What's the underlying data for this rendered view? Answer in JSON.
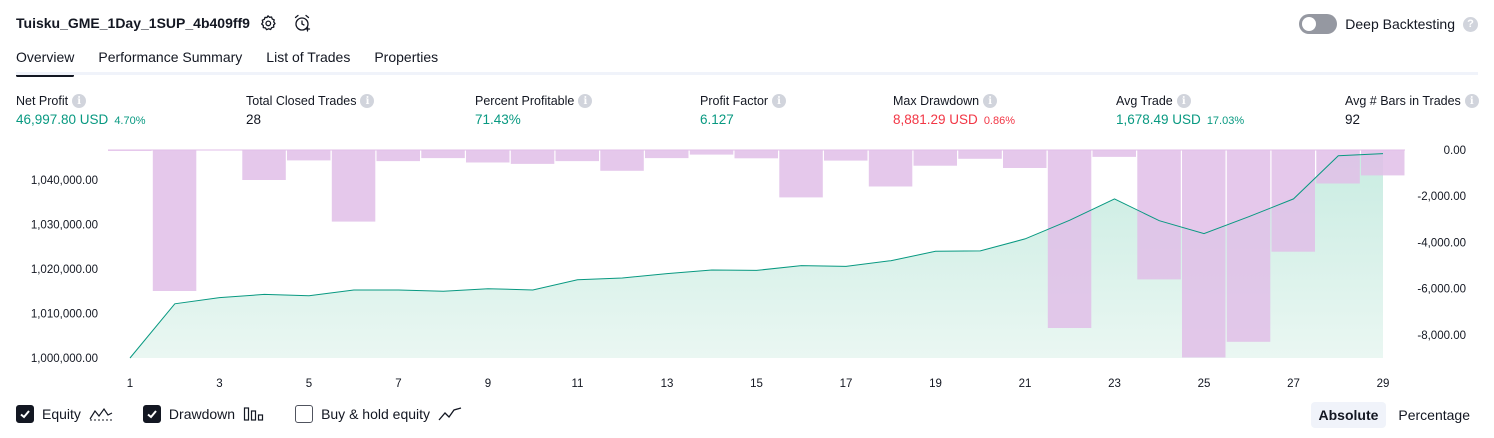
{
  "header": {
    "title": "Tuisku_GME_1Day_1SUP_4b409ff9",
    "settings_icon": "gear-icon",
    "alert_icon": "alarm-clock-icon",
    "deep_backtesting_label": "Deep Backtesting",
    "deep_backtesting_on": false
  },
  "tabs": [
    {
      "label": "Overview",
      "active": true
    },
    {
      "label": "Performance Summary",
      "active": false
    },
    {
      "label": "List of Trades",
      "active": false
    },
    {
      "label": "Properties",
      "active": false
    }
  ],
  "metrics": {
    "net_profit": {
      "label": "Net Profit",
      "value": "46,997.80 USD",
      "pct": "4.70%"
    },
    "total_closed_trades": {
      "label": "Total Closed Trades",
      "value": "28"
    },
    "percent_profitable": {
      "label": "Percent Profitable",
      "value": "71.43%"
    },
    "profit_factor": {
      "label": "Profit Factor",
      "value": "6.127"
    },
    "max_drawdown": {
      "label": "Max Drawdown",
      "value": "8,881.29 USD",
      "pct": "0.86%"
    },
    "avg_trade": {
      "label": "Avg Trade",
      "value": "1,678.49 USD",
      "pct": "17.03%"
    },
    "avg_bars": {
      "label": "Avg # Bars in Trades",
      "value": "92"
    }
  },
  "chart_data": {
    "type": "line",
    "x": [
      1,
      2,
      3,
      4,
      5,
      6,
      7,
      8,
      9,
      10,
      11,
      12,
      13,
      14,
      15,
      16,
      17,
      18,
      19,
      20,
      21,
      22,
      23,
      24,
      25,
      26,
      27,
      28,
      29
    ],
    "x_ticks": [
      "1",
      "3",
      "5",
      "7",
      "9",
      "11",
      "13",
      "15",
      "17",
      "19",
      "21",
      "23",
      "25",
      "27",
      "29"
    ],
    "y_left_ticks": [
      "1,000,000.00",
      "1,010,000.00",
      "1,020,000.00",
      "1,030,000.00",
      "1,040,000.00"
    ],
    "y_right_ticks": [
      "0.00",
      "-2,000.00",
      "-4,000.00",
      "-6,000.00",
      "-8,000.00"
    ],
    "y_left_range": [
      1000000,
      1046800
    ],
    "y_right_range": [
      -9000,
      0
    ],
    "series": [
      {
        "name": "Equity",
        "axis": "left",
        "color": "#089981",
        "values": [
          1000000,
          1012200,
          1013600,
          1014300,
          1014000,
          1015300,
          1015300,
          1015000,
          1015600,
          1015300,
          1017600,
          1018000,
          1019000,
          1019800,
          1019700,
          1020800,
          1020600,
          1021900,
          1024000,
          1024100,
          1026800,
          1031000,
          1035800,
          1030900,
          1028000,
          1031800,
          1035800,
          1045500,
          1046000
        ]
      },
      {
        "name": "Drawdown",
        "axis": "right",
        "color": "#ce93d8",
        "values": [
          -40,
          -6100,
          0,
          -1300,
          -450,
          -3100,
          -480,
          -350,
          -540,
          -600,
          -480,
          -900,
          -350,
          -200,
          -360,
          -2050,
          -460,
          -1580,
          -680,
          -380,
          -780,
          -7700,
          -300,
          -5600,
          -8980,
          -8300,
          -4400,
          -1450,
          -1100
        ]
      }
    ],
    "grid": false,
    "fill_colors": {
      "equity_top": "#c9ece2",
      "equity_bottom": "#eaf7f2",
      "drawdown_bar": "#e1bee7"
    }
  },
  "legend": {
    "equity": {
      "label": "Equity",
      "checked": true,
      "icon": "equity-line-icon"
    },
    "drawdown": {
      "label": "Drawdown",
      "checked": true,
      "icon": "drawdown-bars-icon"
    },
    "buy_hold": {
      "label": "Buy & hold equity",
      "checked": false,
      "icon": "buy-hold-line-icon"
    }
  },
  "modes": [
    {
      "label": "Absolute",
      "active": true
    },
    {
      "label": "Percentage",
      "active": false
    }
  ]
}
